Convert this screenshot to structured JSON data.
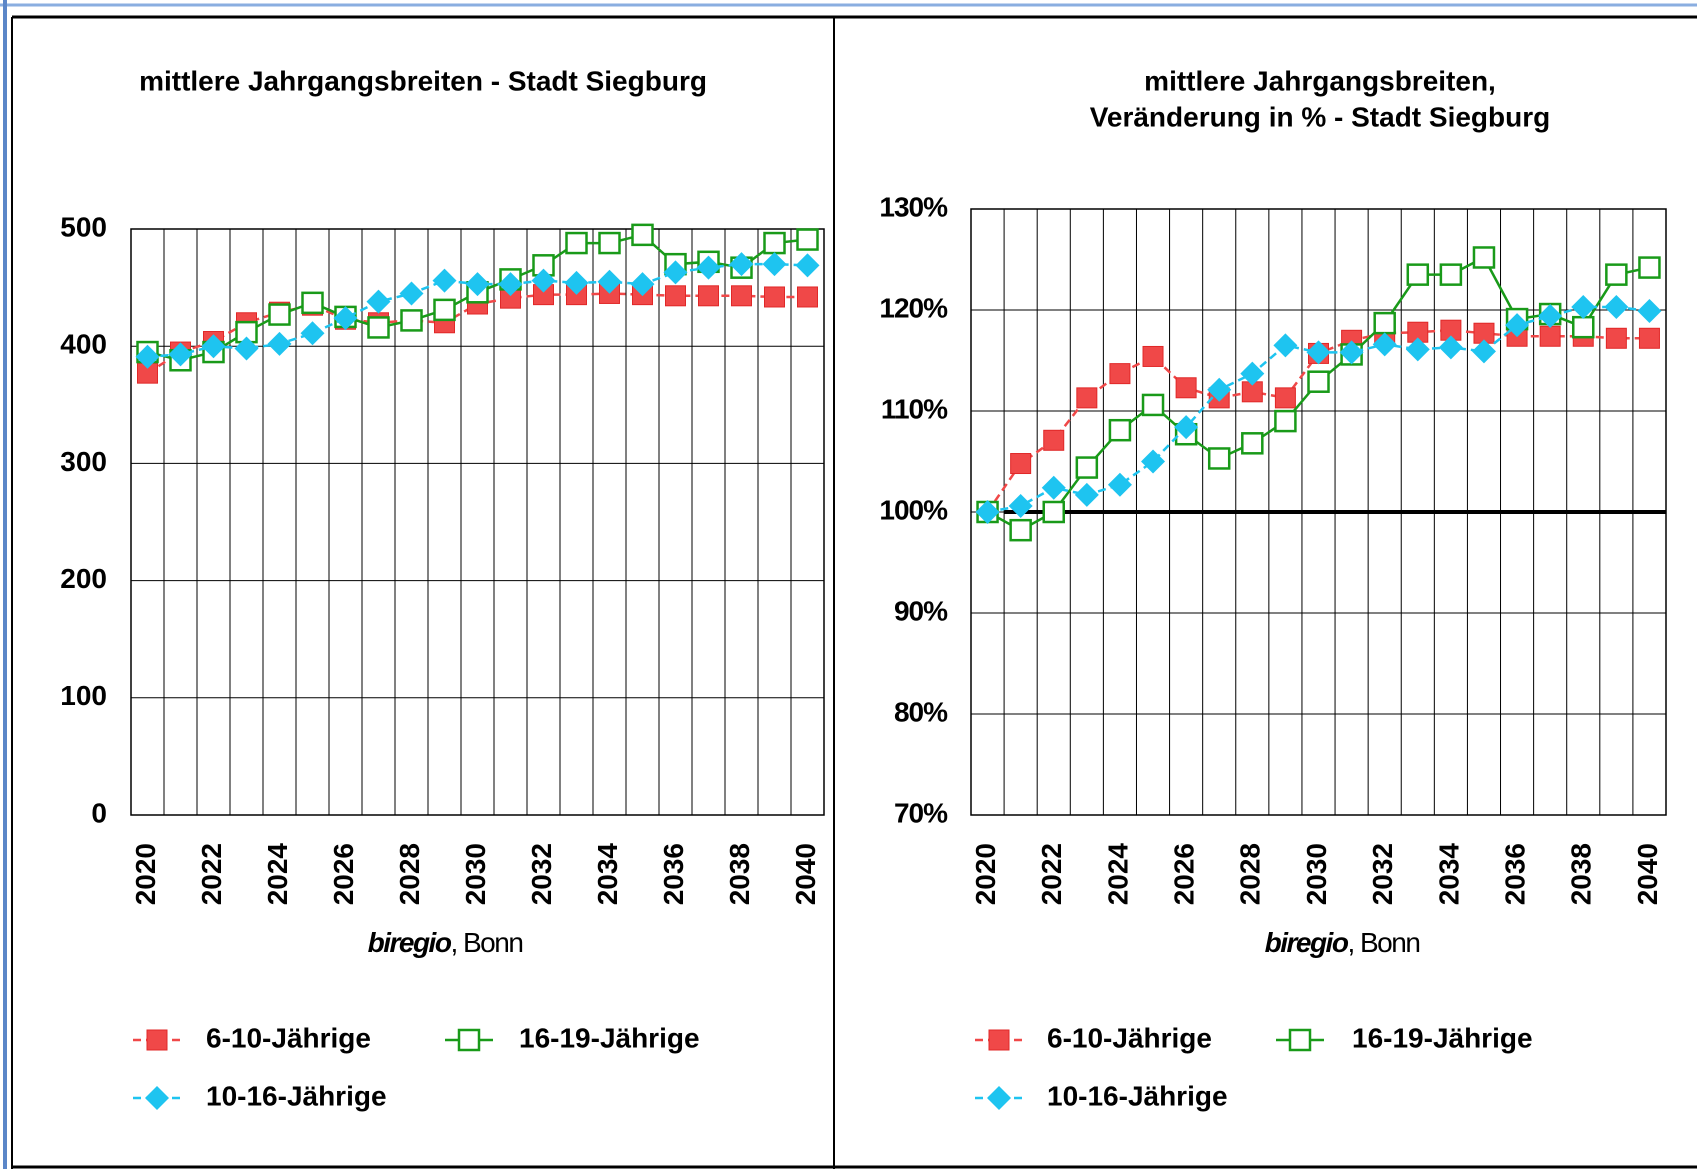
{
  "chart_data": [
    {
      "type": "line",
      "title": [
        "mittlere Jahrgangsbreiten - Stadt Siegburg"
      ],
      "categories": [
        "2020",
        null,
        "2022",
        null,
        "2024",
        null,
        "2026",
        null,
        "2028",
        null,
        "2030",
        null,
        "2032",
        null,
        "2034",
        null,
        "2036",
        null,
        "2038",
        null,
        "2040"
      ],
      "ylim": [
        0,
        500
      ],
      "yticks": [
        0,
        100,
        200,
        300,
        400,
        500
      ],
      "grid": true,
      "source": [
        "biregio",
        ", Bonn"
      ],
      "series": [
        {
          "name": "6-10-Jährige",
          "color": "#f04848",
          "marker": "square",
          "dashed": true,
          "values": [
            377,
            395,
            404,
            420,
            429,
            435,
            423,
            420,
            422,
            420,
            436,
            441,
            444,
            444,
            445,
            444,
            443,
            443,
            443,
            442,
            442
          ]
        },
        {
          "name": "16-19-Jährige",
          "color": "#199a19",
          "marker": "open-square",
          "dashed": false,
          "values": [
            395,
            388,
            395,
            412,
            427,
            437,
            425,
            416,
            422,
            431,
            446,
            457,
            469,
            488,
            488,
            495,
            470,
            472,
            467,
            488,
            491
          ]
        },
        {
          "name": "10-16-Jährige",
          "color": "#1ec4f0",
          "marker": "diamond",
          "dashed": true,
          "values": [
            391,
            393,
            400,
            398,
            402,
            411,
            424,
            438,
            445,
            456,
            453,
            453,
            456,
            454,
            455,
            453,
            463,
            467,
            470,
            470,
            469
          ]
        }
      ]
    },
    {
      "type": "line",
      "title": [
        "mittlere Jahrgangsbreiten,",
        "Veränderung in % - Stadt Siegburg"
      ],
      "categories": [
        "2020",
        null,
        "2022",
        null,
        "2024",
        null,
        "2026",
        null,
        "2028",
        null,
        "2030",
        null,
        "2032",
        null,
        "2034",
        null,
        "2036",
        null,
        "2038",
        null,
        "2040"
      ],
      "ylim": [
        70,
        130
      ],
      "yticks": [
        {
          "value": 70,
          "label": "70%"
        },
        {
          "value": 80,
          "label": "80%"
        },
        {
          "value": 90,
          "label": "90%"
        },
        {
          "value": 100,
          "label": "100%"
        },
        {
          "value": 110,
          "label": "110%"
        },
        {
          "value": 120,
          "label": "120%"
        },
        {
          "value": 130,
          "label": "130%"
        }
      ],
      "grid": true,
      "reference_line": 100,
      "source": [
        "biregio",
        ", Bonn"
      ],
      "series": [
        {
          "name": "6-10-Jährige",
          "color": "#f04848",
          "marker": "square",
          "dashed": true,
          "values": [
            100,
            104.8,
            107.1,
            111.3,
            113.7,
            115.4,
            112.3,
            111.3,
            111.9,
            111.3,
            115.7,
            117,
            117.7,
            117.8,
            118,
            117.7,
            117.4,
            117.4,
            117.4,
            117.2,
            117.2
          ]
        },
        {
          "name": "16-19-Jährige",
          "color": "#199a19",
          "marker": "open-square",
          "dashed": false,
          "values": [
            100,
            98.2,
            100,
            104.4,
            108.1,
            110.6,
            107.7,
            105.3,
            106.8,
            109,
            112.9,
            115.6,
            118.7,
            123.5,
            123.5,
            125.2,
            119.1,
            119.6,
            118.3,
            123.5,
            124.2
          ]
        },
        {
          "name": "10-16-Jährige",
          "color": "#1ec4f0",
          "marker": "diamond",
          "dashed": true,
          "values": [
            100,
            100.6,
            102.4,
            101.7,
            102.7,
            105,
            108.4,
            112.1,
            113.7,
            116.5,
            115.8,
            115.8,
            116.6,
            116.1,
            116.3,
            115.9,
            118.5,
            119.4,
            120.3,
            120.3,
            119.9
          ]
        }
      ]
    }
  ]
}
